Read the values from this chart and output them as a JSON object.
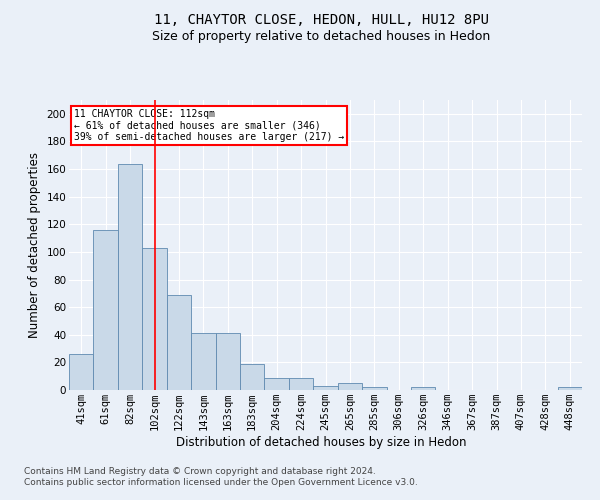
{
  "title": "11, CHAYTOR CLOSE, HEDON, HULL, HU12 8PU",
  "subtitle": "Size of property relative to detached houses in Hedon",
  "xlabel": "Distribution of detached houses by size in Hedon",
  "ylabel": "Number of detached properties",
  "categories": [
    "41sqm",
    "61sqm",
    "82sqm",
    "102sqm",
    "122sqm",
    "143sqm",
    "163sqm",
    "183sqm",
    "204sqm",
    "224sqm",
    "245sqm",
    "265sqm",
    "285sqm",
    "306sqm",
    "326sqm",
    "346sqm",
    "367sqm",
    "387sqm",
    "407sqm",
    "428sqm",
    "448sqm"
  ],
  "values": [
    26,
    116,
    164,
    103,
    69,
    41,
    41,
    19,
    9,
    9,
    3,
    5,
    2,
    0,
    2,
    0,
    0,
    0,
    0,
    0,
    2
  ],
  "bar_color": "#c9d9e8",
  "bar_edge_color": "#5f8ab0",
  "vline_x": 3,
  "vline_color": "red",
  "annotation_text": "11 CHAYTOR CLOSE: 112sqm\n← 61% of detached houses are smaller (346)\n39% of semi-detached houses are larger (217) →",
  "annotation_box_color": "white",
  "annotation_box_edge_color": "red",
  "ylim": [
    0,
    210
  ],
  "yticks": [
    0,
    20,
    40,
    60,
    80,
    100,
    120,
    140,
    160,
    180,
    200
  ],
  "footer_text": "Contains HM Land Registry data © Crown copyright and database right 2024.\nContains public sector information licensed under the Open Government Licence v3.0.",
  "bg_color": "#eaf0f8",
  "plot_bg_color": "#eaf0f8",
  "grid_color": "white",
  "title_fontsize": 10,
  "subtitle_fontsize": 9,
  "axis_label_fontsize": 8.5,
  "tick_fontsize": 7.5,
  "footer_fontsize": 6.5
}
